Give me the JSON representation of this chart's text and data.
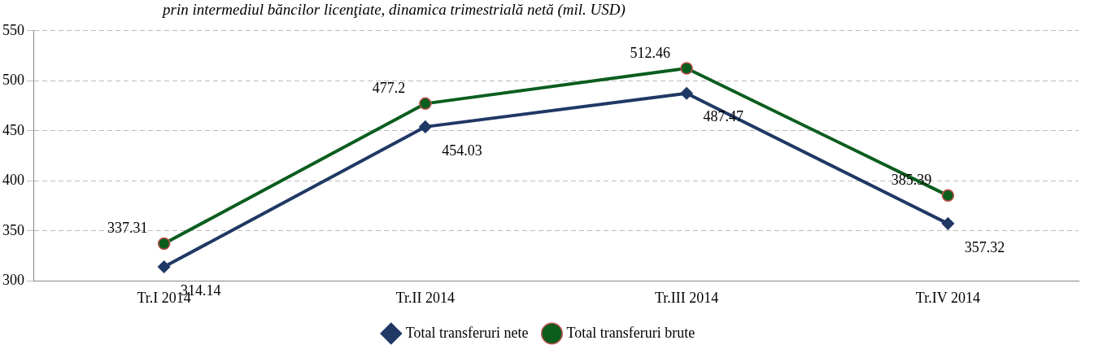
{
  "chart_data": {
    "type": "line",
    "title": "prin intermediul băncilor licenţiate, dinamica trimestrială netă (mil. USD)",
    "categories": [
      "Tr.I 2014",
      "Tr.II 2014",
      "Tr.III 2014",
      "Tr.IV 2014"
    ],
    "series": [
      {
        "name": "Total transferuri nete",
        "color": "#1f3864",
        "marker": "diamond",
        "values": [
          314.14,
          454.03,
          487.47,
          357.32
        ]
      },
      {
        "name": "Total transferuri brute",
        "color": "#0b5d1e",
        "marker": "circle",
        "values": [
          337.31,
          477.2,
          512.46,
          385.39
        ]
      }
    ],
    "ylim": [
      300,
      550
    ],
    "yticks": [
      300,
      350,
      400,
      450,
      500,
      550
    ],
    "grid": "y",
    "legend": "bottom",
    "data_labels": true,
    "line_style": "solid"
  }
}
